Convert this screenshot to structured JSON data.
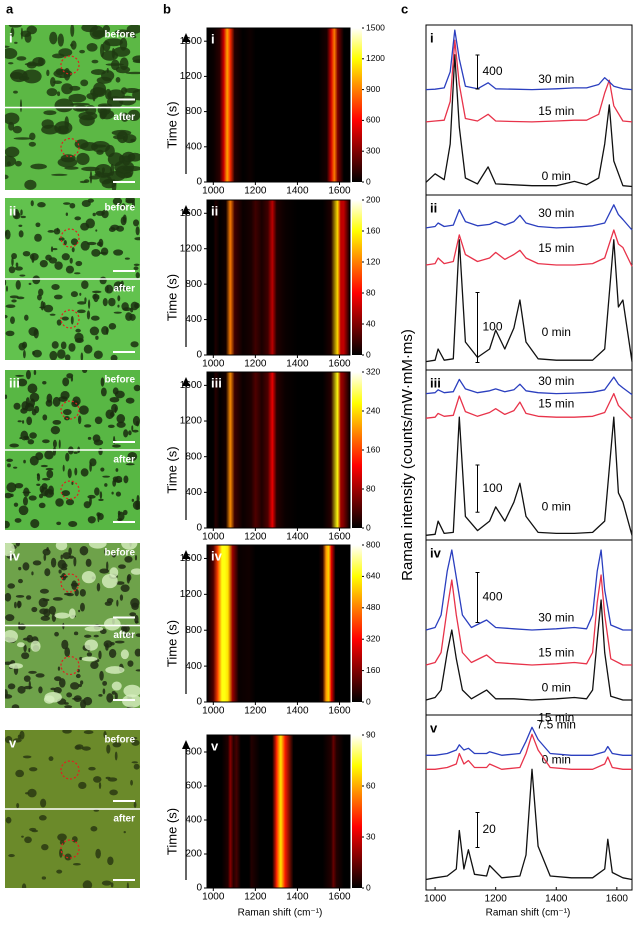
{
  "figure": {
    "panel_labels": [
      "a",
      "b",
      "c"
    ],
    "before": "before",
    "after": "after",
    "time_label": "Time (s)",
    "x_label": "Raman shift (cm⁻¹)",
    "y_label_c": "Raman intensity (counts/mW·mM·ms)",
    "xlim": [
      970,
      1650
    ],
    "xticks": [
      1000,
      1200,
      1400,
      1600
    ],
    "rows": [
      {
        "label": "i",
        "x": [
          970,
          1000,
          1030,
          1050,
          1065,
          1080,
          1100,
          1140,
          1175,
          1200,
          1260,
          1320,
          1400,
          1460,
          1500,
          1540,
          1560,
          1575,
          1590,
          1620,
          1650
        ],
        "heatmap": {
          "values": [
            0,
            20,
            100,
            500,
            1000,
            700,
            80,
            0,
            30,
            0,
            0,
            0,
            0,
            0,
            0,
            60,
            500,
            900,
            300,
            0,
            0
          ],
          "ylim": [
            0,
            1750
          ],
          "yticks": [
            0,
            400,
            800,
            1200,
            1600
          ],
          "clim": [
            0,
            1500
          ],
          "cticks": [
            0,
            300,
            600,
            900,
            1200,
            1500
          ]
        },
        "spectra": {
          "ylim": [
            0,
            2000
          ],
          "scale_bar": 400,
          "series": [
            {
              "name": "0 min",
              "color": "#111111",
              "values": [
                150,
                250,
                180,
                600,
                1650,
                800,
                200,
                130,
                330,
                130,
                120,
                110,
                110,
                160,
                120,
                200,
                600,
                1060,
                400,
                110,
                100
              ]
            },
            {
              "name": "15 min",
              "color": "#e8334a",
              "values": [
                860,
                870,
                880,
                1100,
                1820,
                1300,
                900,
                870,
                950,
                870,
                865,
                860,
                870,
                880,
                880,
                950,
                1200,
                1350,
                1050,
                870,
                860
              ]
            },
            {
              "name": "30 min",
              "color": "#2b3fbf",
              "values": [
                1240,
                1245,
                1260,
                1450,
                1940,
                1600,
                1280,
                1250,
                1320,
                1250,
                1245,
                1240,
                1250,
                1260,
                1260,
                1300,
                1380,
                1330,
                1280,
                1250,
                1240
              ]
            }
          ]
        }
      },
      {
        "label": "ii",
        "x": [
          970,
          1000,
          1010,
          1030,
          1060,
          1080,
          1100,
          1140,
          1180,
          1200,
          1230,
          1260,
          1280,
          1300,
          1340,
          1400,
          1460,
          1520,
          1560,
          1590,
          1605,
          1620,
          1650
        ],
        "heatmap": {
          "values": [
            0,
            0,
            10,
            0,
            5,
            120,
            20,
            3,
            8,
            20,
            8,
            20,
            60,
            10,
            3,
            0,
            0,
            0,
            10,
            150,
            60,
            60,
            0
          ],
          "ylim": [
            0,
            1750
          ],
          "yticks": [
            0,
            400,
            800,
            1200,
            1600
          ],
          "clim": [
            0,
            200
          ],
          "cticks": [
            0,
            40,
            80,
            120,
            160,
            200
          ]
        },
        "spectra": {
          "ylim": [
            0,
            250
          ],
          "scale_bar": 100,
          "series": [
            {
              "name": "0 min",
              "color": "#111111",
              "values": [
                12,
                14,
                30,
                14,
                16,
                186,
                40,
                18,
                30,
                57,
                30,
                60,
                100,
                40,
                16,
                14,
                14,
                14,
                30,
                186,
                90,
                100,
                12
              ]
            },
            {
              "name": "15 min",
              "color": "#e8334a",
              "values": [
                150,
                152,
                160,
                152,
                155,
                193,
                165,
                155,
                160,
                168,
                158,
                165,
                171,
                160,
                152,
                150,
                150,
                152,
                160,
                200,
                180,
                175,
                148
              ]
            },
            {
              "name": "30 min",
              "color": "#2b3fbf",
              "values": [
                203,
                205,
                210,
                205,
                207,
                229,
                212,
                206,
                208,
                212,
                207,
                212,
                221,
                210,
                205,
                203,
                204,
                206,
                210,
                236,
                222,
                215,
                200
              ]
            }
          ]
        }
      },
      {
        "label": "iii",
        "x": [
          970,
          1000,
          1010,
          1030,
          1060,
          1080,
          1100,
          1140,
          1180,
          1200,
          1230,
          1260,
          1280,
          1300,
          1340,
          1400,
          1460,
          1520,
          1560,
          1590,
          1605,
          1620,
          1650
        ],
        "heatmap": {
          "values": [
            0,
            0,
            20,
            0,
            10,
            200,
            30,
            5,
            15,
            40,
            15,
            40,
            120,
            20,
            5,
            0,
            0,
            0,
            20,
            260,
            80,
            60,
            0
          ],
          "ylim": [
            0,
            1750
          ],
          "yticks": [
            0,
            400,
            800,
            1200,
            1600
          ],
          "clim": [
            0,
            320
          ],
          "cticks": [
            0,
            80,
            160,
            240,
            320
          ]
        },
        "spectra": {
          "ylim": [
            0,
            360
          ],
          "scale_bar": 100,
          "series": [
            {
              "name": "0 min",
              "color": "#111111",
              "values": [
                10,
                12,
                40,
                14,
                16,
                260,
                50,
                20,
                40,
                70,
                40,
                80,
                120,
                50,
                16,
                14,
                14,
                16,
                40,
                260,
                100,
                80,
                10
              ]
            },
            {
              "name": "15 min",
              "color": "#e8334a",
              "values": [
                258,
                260,
                268,
                262,
                264,
                305,
                272,
                262,
                270,
                278,
                266,
                274,
                292,
                268,
                262,
                260,
                260,
                262,
                270,
                310,
                285,
                275,
                256
              ]
            },
            {
              "name": "30 min",
              "color": "#2b3fbf",
              "values": [
                310,
                312,
                318,
                312,
                314,
                340,
                320,
                312,
                316,
                320,
                314,
                318,
                330,
                316,
                312,
                310,
                311,
                313,
                318,
                345,
                330,
                322,
                308
              ]
            }
          ]
        }
      },
      {
        "label": "iv",
        "x": [
          970,
          1000,
          1020,
          1040,
          1055,
          1070,
          1090,
          1120,
          1170,
          1200,
          1260,
          1320,
          1400,
          1460,
          1500,
          1520,
          1535,
          1548,
          1560,
          1580,
          1620,
          1650
        ],
        "heatmap": {
          "values": [
            0,
            100,
            400,
            650,
            650,
            600,
            200,
            10,
            20,
            0,
            0,
            0,
            0,
            0,
            0,
            50,
            500,
            600,
            300,
            0,
            0,
            0
          ],
          "ylim": [
            0,
            1750
          ],
          "yticks": [
            0,
            400,
            800,
            1200,
            1600
          ],
          "clim": [
            0,
            800
          ],
          "cticks": [
            0,
            160,
            320,
            480,
            640,
            800
          ]
        },
        "spectra": {
          "ylim": [
            0,
            1400
          ],
          "scale_bar": 400,
          "series": [
            {
              "name": "0 min",
              "color": "#111111",
              "values": [
                120,
                140,
                200,
                500,
                680,
                450,
                200,
                130,
                200,
                130,
                130,
                120,
                130,
                140,
                130,
                200,
                600,
                920,
                500,
                150,
                120,
                120
              ]
            },
            {
              "name": "15 min",
              "color": "#e8334a",
              "values": [
                400,
                420,
                500,
                850,
                1080,
                800,
                500,
                420,
                480,
                420,
                410,
                400,
                410,
                420,
                410,
                500,
                900,
                1120,
                800,
                450,
                400,
                400
              ]
            },
            {
              "name": "30 min",
              "color": "#2b3fbf",
              "values": [
                680,
                700,
                800,
                1150,
                1320,
                1100,
                800,
                700,
                760,
                700,
                690,
                680,
                690,
                700,
                690,
                800,
                1150,
                1320,
                1000,
                720,
                680,
                680
              ]
            }
          ]
        }
      },
      {
        "label": "v",
        "x": [
          970,
          1000,
          1040,
          1070,
          1080,
          1095,
          1110,
          1130,
          1170,
          1180,
          1220,
          1280,
          1300,
          1320,
          1340,
          1380,
          1450,
          1520,
          1560,
          1570,
          1585,
          1620,
          1650
        ],
        "heatmap": {
          "values": [
            0,
            0,
            0,
            5,
            20,
            5,
            10,
            0,
            0,
            5,
            0,
            0,
            40,
            70,
            40,
            0,
            0,
            0,
            5,
            15,
            5,
            0,
            0
          ],
          "ylim": [
            0,
            900
          ],
          "yticks": [
            0,
            200,
            400,
            600,
            800
          ],
          "clim": [
            0,
            90
          ],
          "cticks": [
            0,
            30,
            60,
            90
          ]
        },
        "spectra": {
          "ylim": [
            0,
            100
          ],
          "scale_bar": 20,
          "series": [
            {
              "name": "0 min",
              "color": "#111111",
              "values": [
                6,
                7,
                8,
                12,
                34,
                12,
                23,
                9,
                8,
                14,
                7,
                8,
                20,
                69,
                25,
                8,
                7,
                7,
                12,
                29,
                10,
                7,
                6
              ]
            },
            {
              "name": "7.5 min",
              "color": "#e8334a",
              "values": [
                69,
                69,
                70,
                72,
                78,
                72,
                74,
                70,
                70,
                72,
                69,
                70,
                78,
                89,
                80,
                70,
                69,
                69,
                72,
                76,
                70,
                69,
                69
              ]
            },
            {
              "name": "15 min",
              "color": "#2b3fbf",
              "values": [
                77,
                77,
                78,
                80,
                83,
                80,
                81,
                78,
                78,
                79,
                77,
                78,
                85,
                93,
                86,
                78,
                77,
                77,
                79,
                82,
                78,
                77,
                77
              ]
            }
          ]
        }
      }
    ]
  }
}
